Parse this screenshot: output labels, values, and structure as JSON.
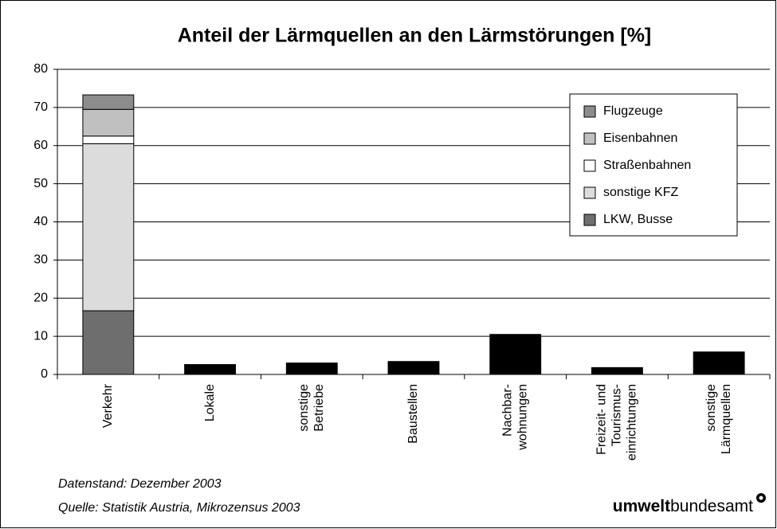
{
  "chart_data": {
    "type": "stacked_bar",
    "title": "Anteil der Lärmquellen an den Lärmstörungen [%]",
    "categories": [
      [
        "Verkehr"
      ],
      [
        "Lokale"
      ],
      [
        "sonstige",
        "Betriebe"
      ],
      [
        "Baustellen"
      ],
      [
        "Nachbar-",
        "wohnungen"
      ],
      [
        "Freizeit- und",
        "Tourismus-",
        "einrichtungen"
      ],
      [
        "sonstige",
        "Lärmquellen"
      ]
    ],
    "series": [
      {
        "name": "LKW, Busse",
        "color": "#6e6e6e",
        "values": [
          16.7,
          null,
          null,
          null,
          null,
          null,
          null
        ]
      },
      {
        "name": "sonstige KFZ",
        "color": "#dcdcdc",
        "values": [
          43.8,
          null,
          null,
          null,
          null,
          null,
          null
        ]
      },
      {
        "name": "Straßenbahnen",
        "color": "#ffffff",
        "values": [
          2.0,
          null,
          null,
          null,
          null,
          null,
          null
        ]
      },
      {
        "name": "Eisenbahnen",
        "color": "#c0c0c0",
        "values": [
          7.0,
          null,
          null,
          null,
          null,
          null,
          null
        ]
      },
      {
        "name": "Flugzeuge",
        "color": "#8c8c8c",
        "values": [
          3.8,
          null,
          null,
          null,
          null,
          null,
          null
        ]
      },
      {
        "color": "#000000",
        "values": [
          null,
          2.6,
          3.0,
          3.4,
          10.5,
          1.8,
          5.9
        ]
      }
    ],
    "ylim": [
      0,
      80
    ],
    "yticks": [
      0,
      10,
      20,
      30,
      40,
      50,
      60,
      70,
      80
    ],
    "grid": true,
    "legend": "upper right",
    "notes": [
      "Datenstand: Dezember 2003",
      "Quelle: Statistik Austria, Mikrozensus 2003"
    ],
    "logo": [
      "umwelt",
      "bundesamt"
    ]
  }
}
